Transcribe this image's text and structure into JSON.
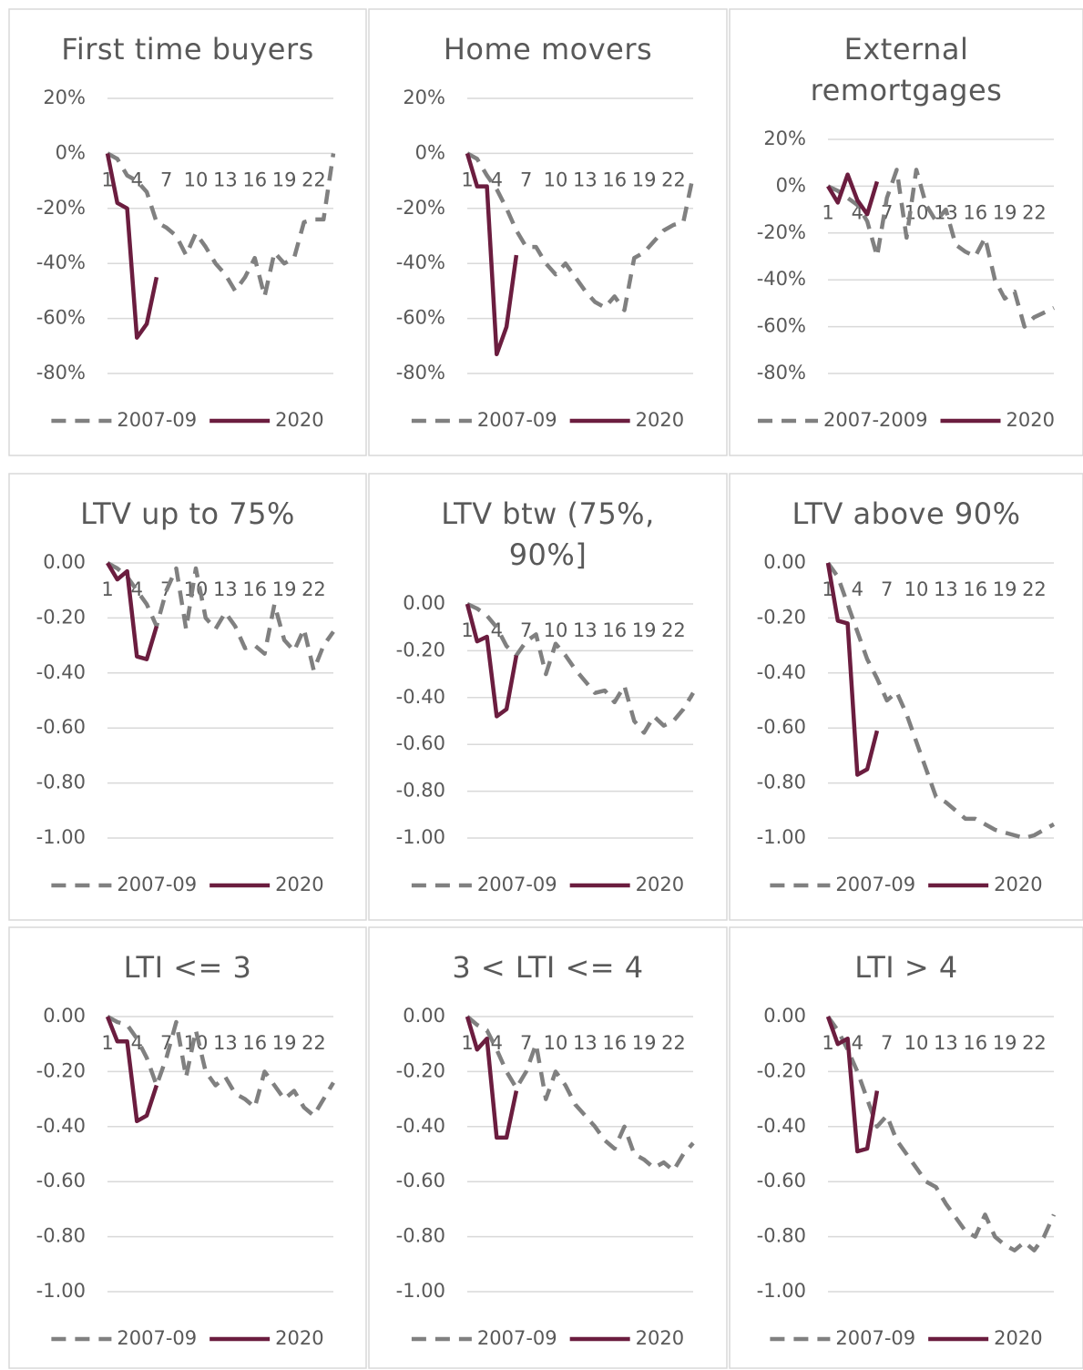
{
  "chart_data": [
    {
      "type": "line",
      "title": "First time buyers",
      "categories": [
        "1",
        null,
        null,
        "4",
        null,
        null,
        "7",
        null,
        null,
        "10",
        null,
        null,
        "13",
        null,
        null,
        "16",
        null,
        null,
        "19",
        null,
        null,
        "22",
        null,
        null
      ],
      "series": [
        {
          "name": "2007-09",
          "color": "#808080",
          "line_style": "dashed",
          "values": [
            0,
            -2,
            -8,
            -10,
            -14,
            -25,
            -27,
            -30,
            -37,
            -29,
            -34,
            -40,
            -44,
            -50,
            -45,
            -38,
            -52,
            -36,
            -40,
            -38,
            -25,
            -24,
            -24,
            0
          ]
        },
        {
          "name": "2020",
          "color": "#6b1d3f",
          "line_style": "solid",
          "values": [
            0,
            -18,
            -20,
            -67,
            -62,
            -45,
            null,
            null,
            null,
            null,
            null,
            null,
            null,
            null,
            null,
            null,
            null,
            null,
            null,
            null,
            null,
            null,
            null,
            null
          ]
        }
      ],
      "ylim": [
        -80,
        20
      ],
      "yticks": [
        {
          "value": 20,
          "label": "20%"
        },
        {
          "value": 0,
          "label": "0%"
        },
        {
          "value": -20,
          "label": "-20%"
        },
        {
          "value": -40,
          "label": "-40%"
        },
        {
          "value": -60,
          "label": "-60%"
        },
        {
          "value": -80,
          "label": "-80%"
        }
      ],
      "grid": true,
      "legend": "bottom"
    },
    {
      "type": "line",
      "title": "Home movers",
      "categories": [
        "1",
        null,
        null,
        "4",
        null,
        null,
        "7",
        null,
        null,
        "10",
        null,
        null,
        "13",
        null,
        null,
        "16",
        null,
        null,
        "19",
        null,
        null,
        "22",
        null,
        null
      ],
      "series": [
        {
          "name": "2007-09",
          "color": "#808080",
          "line_style": "dashed",
          "values": [
            0,
            -2,
            -8,
            -13,
            -20,
            -28,
            -34,
            -34,
            -40,
            -44,
            -40,
            -45,
            -50,
            -54,
            -56,
            -52,
            -57,
            -38,
            -36,
            -32,
            -28,
            -26,
            -25,
            -8
          ]
        },
        {
          "name": "2020",
          "color": "#6b1d3f",
          "line_style": "solid",
          "values": [
            0,
            -12,
            -12,
            -73,
            -63,
            -37,
            null,
            null,
            null,
            null,
            null,
            null,
            null,
            null,
            null,
            null,
            null,
            null,
            null,
            null,
            null,
            null,
            null,
            null
          ]
        }
      ],
      "ylim": [
        -80,
        20
      ],
      "yticks": [
        {
          "value": 20,
          "label": "20%"
        },
        {
          "value": 0,
          "label": "0%"
        },
        {
          "value": -20,
          "label": "-20%"
        },
        {
          "value": -40,
          "label": "-40%"
        },
        {
          "value": -60,
          "label": "-60%"
        },
        {
          "value": -80,
          "label": "-80%"
        }
      ],
      "grid": true,
      "legend": "bottom"
    },
    {
      "type": "line",
      "title": "External remortgages",
      "categories": [
        "1",
        null,
        null,
        "4",
        null,
        null,
        "7",
        null,
        null,
        "10",
        null,
        null,
        "13",
        null,
        null,
        "16",
        null,
        null,
        "19",
        null,
        null,
        "22",
        null,
        null
      ],
      "series": [
        {
          "name": "2007-2009",
          "color": "#808080",
          "line_style": "dashed",
          "values": [
            0,
            -2,
            -5,
            -8,
            -15,
            -30,
            -5,
            7,
            -22,
            7,
            -8,
            -15,
            -10,
            -25,
            -28,
            -30,
            -22,
            -40,
            -48,
            -45,
            -60,
            -56,
            -54,
            -52
          ]
        },
        {
          "name": "2020",
          "color": "#6b1d3f",
          "line_style": "solid",
          "values": [
            0,
            -7,
            5,
            -6,
            -12,
            2,
            null,
            null,
            null,
            null,
            null,
            null,
            null,
            null,
            null,
            null,
            null,
            null,
            null,
            null,
            null,
            null,
            null,
            null
          ]
        }
      ],
      "ylim": [
        -80,
        20
      ],
      "yticks": [
        {
          "value": 20,
          "label": "20%"
        },
        {
          "value": 0,
          "label": "0%"
        },
        {
          "value": -20,
          "label": "-20%"
        },
        {
          "value": -40,
          "label": "-40%"
        },
        {
          "value": -60,
          "label": "-60%"
        },
        {
          "value": -80,
          "label": "-80%"
        }
      ],
      "grid": true,
      "legend": "bottom"
    },
    {
      "type": "line",
      "title": "LTV up to 75%",
      "categories": [
        "1",
        null,
        null,
        "4",
        null,
        null,
        "7",
        null,
        null,
        "10",
        null,
        null,
        "13",
        null,
        null,
        "16",
        null,
        null,
        "19",
        null,
        null,
        "22",
        null,
        null
      ],
      "series": [
        {
          "name": "2007-09",
          "color": "#808080",
          "line_style": "dashed",
          "values": [
            0,
            -0.02,
            -0.05,
            -0.1,
            -0.15,
            -0.23,
            -0.1,
            -0.02,
            -0.24,
            -0.02,
            -0.2,
            -0.24,
            -0.18,
            -0.23,
            -0.31,
            -0.3,
            -0.33,
            -0.15,
            -0.28,
            -0.32,
            -0.24,
            -0.39,
            -0.3,
            -0.25
          ]
        },
        {
          "name": "2020",
          "color": "#6b1d3f",
          "line_style": "solid",
          "values": [
            0,
            -0.06,
            -0.03,
            -0.34,
            -0.35,
            -0.23,
            null,
            null,
            null,
            null,
            null,
            null,
            null,
            null,
            null,
            null,
            null,
            null,
            null,
            null,
            null,
            null,
            null,
            null
          ]
        }
      ],
      "ylim": [
        -1,
        0
      ],
      "yticks": [
        {
          "value": 0,
          "label": "0.00"
        },
        {
          "value": -0.2,
          "label": "-0.20"
        },
        {
          "value": -0.4,
          "label": "-0.40"
        },
        {
          "value": -0.6,
          "label": "-0.60"
        },
        {
          "value": -0.8,
          "label": "-0.80"
        },
        {
          "value": -1,
          "label": "-1.00"
        }
      ],
      "grid": true,
      "legend": "bottom"
    },
    {
      "type": "line",
      "title": "LTV btw (75%, 90%]",
      "categories": [
        "1",
        null,
        null,
        "4",
        null,
        null,
        "7",
        null,
        null,
        "10",
        null,
        null,
        "13",
        null,
        null,
        "16",
        null,
        null,
        "19",
        null,
        null,
        "22",
        null,
        null
      ],
      "series": [
        {
          "name": "2007-09",
          "color": "#808080",
          "line_style": "dashed",
          "values": [
            0,
            -0.02,
            -0.05,
            -0.1,
            -0.18,
            -0.22,
            -0.16,
            -0.13,
            -0.3,
            -0.17,
            -0.22,
            -0.28,
            -0.33,
            -0.38,
            -0.37,
            -0.42,
            -0.35,
            -0.5,
            -0.55,
            -0.48,
            -0.52,
            -0.5,
            -0.45,
            -0.38
          ]
        },
        {
          "name": "2020",
          "color": "#6b1d3f",
          "line_style": "solid",
          "values": [
            0,
            -0.16,
            -0.14,
            -0.48,
            -0.45,
            -0.22,
            null,
            null,
            null,
            null,
            null,
            null,
            null,
            null,
            null,
            null,
            null,
            null,
            null,
            null,
            null,
            null,
            null,
            null
          ]
        }
      ],
      "ylim": [
        -1,
        0
      ],
      "yticks": [
        {
          "value": 0,
          "label": "0.00"
        },
        {
          "value": -0.2,
          "label": "-0.20"
        },
        {
          "value": -0.4,
          "label": "-0.40"
        },
        {
          "value": -0.6,
          "label": "-0.60"
        },
        {
          "value": -0.8,
          "label": "-0.80"
        },
        {
          "value": -1,
          "label": "-1.00"
        }
      ],
      "grid": true,
      "legend": "bottom"
    },
    {
      "type": "line",
      "title": "LTV above 90%",
      "categories": [
        "1",
        null,
        null,
        "4",
        null,
        null,
        "7",
        null,
        null,
        "10",
        null,
        null,
        "13",
        null,
        null,
        "16",
        null,
        null,
        "19",
        null,
        null,
        "22",
        null,
        null
      ],
      "series": [
        {
          "name": "2007-09",
          "color": "#808080",
          "line_style": "dashed",
          "values": [
            0,
            -0.05,
            -0.15,
            -0.25,
            -0.35,
            -0.42,
            -0.5,
            -0.47,
            -0.55,
            -0.65,
            -0.75,
            -0.85,
            -0.87,
            -0.9,
            -0.93,
            -0.93,
            -0.95,
            -0.97,
            -0.98,
            -0.99,
            -1,
            -0.99,
            -0.97,
            -0.95
          ]
        },
        {
          "name": "2020",
          "color": "#6b1d3f",
          "line_style": "solid",
          "values": [
            0,
            -0.21,
            -0.22,
            -0.77,
            -0.75,
            -0.61,
            null,
            null,
            null,
            null,
            null,
            null,
            null,
            null,
            null,
            null,
            null,
            null,
            null,
            null,
            null,
            null,
            null,
            null
          ]
        }
      ],
      "ylim": [
        -1,
        0
      ],
      "yticks": [
        {
          "value": 0,
          "label": "0.00"
        },
        {
          "value": -0.2,
          "label": "-0.20"
        },
        {
          "value": -0.4,
          "label": "-0.40"
        },
        {
          "value": -0.6,
          "label": "-0.60"
        },
        {
          "value": -0.8,
          "label": "-0.80"
        },
        {
          "value": -1,
          "label": "-1.00"
        }
      ],
      "grid": true,
      "legend": "bottom"
    },
    {
      "type": "line",
      "title": "LTI <= 3",
      "categories": [
        "1",
        null,
        null,
        "4",
        null,
        null,
        "7",
        null,
        null,
        "10",
        null,
        null,
        "13",
        null,
        null,
        "16",
        null,
        null,
        "19",
        null,
        null,
        "22",
        null,
        null
      ],
      "series": [
        {
          "name": "2007-09",
          "color": "#808080",
          "line_style": "dashed",
          "values": [
            0,
            -0.02,
            -0.03,
            -0.08,
            -0.15,
            -0.25,
            -0.15,
            -0.02,
            -0.22,
            -0.05,
            -0.2,
            -0.25,
            -0.22,
            -0.28,
            -0.3,
            -0.33,
            -0.2,
            -0.25,
            -0.3,
            -0.27,
            -0.33,
            -0.36,
            -0.3,
            -0.24
          ]
        },
        {
          "name": "2020",
          "color": "#6b1d3f",
          "line_style": "solid",
          "values": [
            0,
            -0.09,
            -0.09,
            -0.38,
            -0.36,
            -0.25,
            null,
            null,
            null,
            null,
            null,
            null,
            null,
            null,
            null,
            null,
            null,
            null,
            null,
            null,
            null,
            null,
            null,
            null
          ]
        }
      ],
      "ylim": [
        -1,
        0
      ],
      "yticks": [
        {
          "value": 0,
          "label": "0.00"
        },
        {
          "value": -0.2,
          "label": "-0.20"
        },
        {
          "value": -0.4,
          "label": "-0.40"
        },
        {
          "value": -0.6,
          "label": "-0.60"
        },
        {
          "value": -0.8,
          "label": "-0.80"
        },
        {
          "value": -1,
          "label": "-1.00"
        }
      ],
      "grid": true,
      "legend": "bottom"
    },
    {
      "type": "line",
      "title": "3 < LTI <= 4",
      "categories": [
        "1",
        null,
        null,
        "4",
        null,
        null,
        "7",
        null,
        null,
        "10",
        null,
        null,
        "13",
        null,
        null,
        "16",
        null,
        null,
        "19",
        null,
        null,
        "22",
        null,
        null
      ],
      "series": [
        {
          "name": "2007-09",
          "color": "#808080",
          "line_style": "dashed",
          "values": [
            0,
            -0.03,
            -0.05,
            -0.12,
            -0.2,
            -0.26,
            -0.2,
            -0.1,
            -0.3,
            -0.2,
            -0.25,
            -0.32,
            -0.36,
            -0.4,
            -0.45,
            -0.48,
            -0.4,
            -0.5,
            -0.52,
            -0.55,
            -0.53,
            -0.56,
            -0.5,
            -0.46
          ]
        },
        {
          "name": "2020",
          "color": "#6b1d3f",
          "line_style": "solid",
          "values": [
            0,
            -0.12,
            -0.08,
            -0.44,
            -0.44,
            -0.27,
            null,
            null,
            null,
            null,
            null,
            null,
            null,
            null,
            null,
            null,
            null,
            null,
            null,
            null,
            null,
            null,
            null,
            null
          ]
        }
      ],
      "ylim": [
        -1,
        0
      ],
      "yticks": [
        {
          "value": 0,
          "label": "0.00"
        },
        {
          "value": -0.2,
          "label": "-0.20"
        },
        {
          "value": -0.4,
          "label": "-0.40"
        },
        {
          "value": -0.6,
          "label": "-0.60"
        },
        {
          "value": -0.8,
          "label": "-0.80"
        },
        {
          "value": -1,
          "label": "-1.00"
        }
      ],
      "grid": true,
      "legend": "bottom"
    },
    {
      "type": "line",
      "title": "LTI > 4",
      "categories": [
        "1",
        null,
        null,
        "4",
        null,
        null,
        "7",
        null,
        null,
        "10",
        null,
        null,
        "13",
        null,
        null,
        "16",
        null,
        null,
        "19",
        null,
        null,
        "22",
        null,
        null
      ],
      "series": [
        {
          "name": "2007-09",
          "color": "#808080",
          "line_style": "dashed",
          "values": [
            0,
            -0.05,
            -0.12,
            -0.2,
            -0.3,
            -0.4,
            -0.36,
            -0.45,
            -0.5,
            -0.55,
            -0.6,
            -0.62,
            -0.68,
            -0.73,
            -0.78,
            -0.8,
            -0.72,
            -0.8,
            -0.83,
            -0.85,
            -0.82,
            -0.85,
            -0.8,
            -0.72
          ]
        },
        {
          "name": "2020",
          "color": "#6b1d3f",
          "line_style": "solid",
          "values": [
            0,
            -0.1,
            -0.08,
            -0.49,
            -0.48,
            -0.27,
            null,
            null,
            null,
            null,
            null,
            null,
            null,
            null,
            null,
            null,
            null,
            null,
            null,
            null,
            null,
            null,
            null,
            null
          ]
        }
      ],
      "ylim": [
        -1,
        0
      ],
      "yticks": [
        {
          "value": 0,
          "label": "0.00"
        },
        {
          "value": -0.2,
          "label": "-0.20"
        },
        {
          "value": -0.4,
          "label": "-0.40"
        },
        {
          "value": -0.6,
          "label": "-0.60"
        },
        {
          "value": -0.8,
          "label": "-0.80"
        },
        {
          "value": -1,
          "label": "-1.00"
        }
      ],
      "grid": true,
      "legend": "bottom"
    }
  ]
}
